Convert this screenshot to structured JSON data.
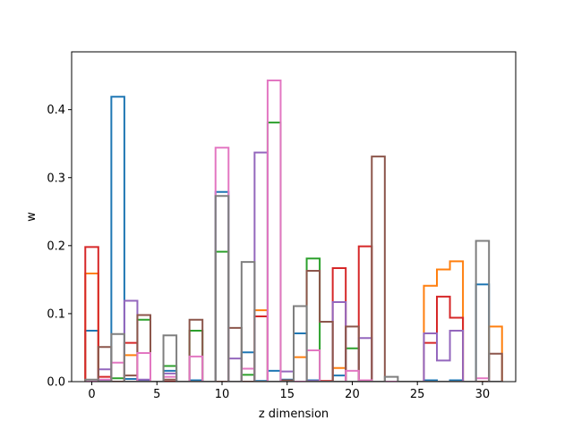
{
  "chart_data": {
    "type": "step-histogram",
    "title": "",
    "xlabel": "z dimension",
    "ylabel": "w",
    "xlim": [
      -1.55,
      32.55
    ],
    "ylim": [
      0,
      0.485
    ],
    "xticks": [
      0,
      5,
      10,
      15,
      20,
      25,
      30
    ],
    "yticks": [
      0.0,
      0.1,
      0.2,
      0.3,
      0.4
    ],
    "ytick_labels": [
      "0.0",
      "0.1",
      "0.2",
      "0.3",
      "0.4"
    ],
    "x": [
      0,
      1,
      2,
      3,
      4,
      5,
      6,
      7,
      8,
      9,
      10,
      11,
      12,
      13,
      14,
      15,
      16,
      17,
      18,
      19,
      20,
      21,
      22,
      23,
      24,
      25,
      26,
      27,
      28,
      29,
      30,
      31
    ],
    "series": [
      {
        "color": "#1f77b4",
        "values": [
          0.075,
          0.002,
          0.419,
          0.004,
          0.002,
          0,
          0.016,
          0,
          0.002,
          0,
          0.279,
          0,
          0.043,
          0.001,
          0.016,
          0.003,
          0.071,
          0.002,
          0,
          0.009,
          0,
          0,
          0,
          0,
          0,
          0,
          0.002,
          0,
          0.002,
          0,
          0.143,
          0
        ]
      },
      {
        "color": "#ff7f0e",
        "values": [
          0.159,
          0,
          0,
          0.039,
          0,
          0,
          0,
          0,
          0,
          0,
          0,
          0,
          0,
          0.105,
          0,
          0,
          0.036,
          0,
          0,
          0.02,
          0,
          0,
          0,
          0,
          0,
          0,
          0.141,
          0.165,
          0.177,
          0,
          0,
          0.081
        ]
      },
      {
        "color": "#2ca02c",
        "values": [
          0,
          0,
          0.005,
          0,
          0.091,
          0,
          0.023,
          0,
          0.075,
          0,
          0.191,
          0,
          0.01,
          0,
          0.381,
          0,
          0,
          0.181,
          0,
          0,
          0.049,
          0,
          0,
          0,
          0,
          0,
          0,
          0,
          0,
          0,
          0,
          0
        ]
      },
      {
        "color": "#d62728",
        "values": [
          0.198,
          0.007,
          0,
          0.057,
          0,
          0,
          0,
          0,
          0,
          0,
          0,
          0,
          0,
          0.096,
          0,
          0,
          0,
          0,
          0.001,
          0.167,
          0,
          0.199,
          0,
          0,
          0,
          0,
          0.057,
          0.125,
          0.094,
          0,
          0,
          0
        ]
      },
      {
        "color": "#9467bd",
        "values": [
          0,
          0.018,
          0,
          0.119,
          0.003,
          0,
          0.012,
          0,
          0,
          0,
          0,
          0.034,
          0,
          0.337,
          0,
          0.015,
          0,
          0.001,
          0,
          0.117,
          0,
          0.064,
          0,
          0,
          0,
          0,
          0.071,
          0.031,
          0.075,
          0,
          0,
          0
        ]
      },
      {
        "color": "#8c564b",
        "values": [
          0,
          0.051,
          0,
          0.009,
          0.098,
          0,
          0.003,
          0,
          0.091,
          0,
          0,
          0.079,
          0,
          0,
          0,
          0.002,
          0,
          0.163,
          0.088,
          0,
          0.081,
          0,
          0.331,
          0,
          0,
          0,
          0,
          0,
          0,
          0,
          0,
          0.041
        ]
      },
      {
        "color": "#e377c2",
        "values": [
          0,
          0.003,
          0.028,
          0,
          0.042,
          0,
          0.007,
          0,
          0.037,
          0,
          0.344,
          0,
          0.019,
          0,
          0.443,
          0,
          0,
          0.046,
          0,
          0,
          0.016,
          0.002,
          0,
          0,
          0,
          0,
          0,
          0,
          0,
          0,
          0.005,
          0
        ]
      },
      {
        "color": "#7f7f7f",
        "values": [
          0.003,
          0,
          0.07,
          0,
          0,
          0,
          0.068,
          0,
          0,
          0,
          0.273,
          0,
          0.176,
          0,
          0,
          0,
          0.111,
          0,
          0,
          0,
          0,
          0,
          0,
          0.007,
          0,
          0,
          0,
          0,
          0,
          0,
          0.207,
          0
        ]
      }
    ]
  }
}
